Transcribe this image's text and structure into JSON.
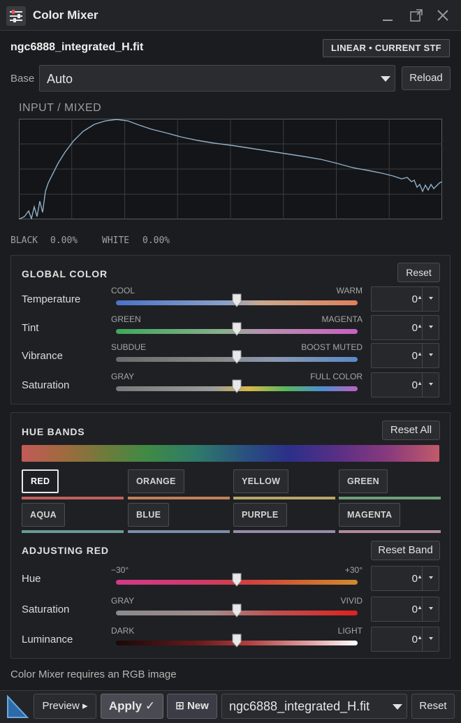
{
  "window": {
    "title": "Color Mixer",
    "app_icon": "sliders-icon",
    "controls": [
      "minimize-icon",
      "popout-icon",
      "close-icon"
    ]
  },
  "file": {
    "name": "ngc6888_integrated_H.fit",
    "mode_badge": "LINEAR  •  CURRENT STF"
  },
  "base": {
    "label": "Base",
    "selected": "Auto",
    "reload_label": "Reload"
  },
  "histogram": {
    "label": "INPUT  /  MIXED",
    "black_label": "BLACK",
    "black_value": "0.00%",
    "white_label": "WHITE",
    "white_value": "0.00%",
    "curve_color": "#8fb0c8"
  },
  "global": {
    "title": "GLOBAL COLOR",
    "reset_label": "Reset",
    "rows": [
      {
        "label": "Temperature",
        "left": "COOL",
        "right": "WARM",
        "value": "0",
        "level": 0.5
      },
      {
        "label": "Tint",
        "left": "GREEN",
        "right": "MAGENTA",
        "value": "0",
        "level": 0.5
      },
      {
        "label": "Vibrance",
        "left": "SUBDUE",
        "right": "BOOST MUTED",
        "value": "0",
        "level": 0.5
      },
      {
        "label": "Saturation",
        "left": "GRAY",
        "right": "FULL COLOR",
        "value": "0",
        "level": 0.5
      }
    ]
  },
  "hue": {
    "title": "HUE BANDS",
    "reset_all_label": "Reset All",
    "bands": [
      {
        "label": "RED",
        "color": "#c0605e",
        "active": true
      },
      {
        "label": "ORANGE",
        "color": "#c0805a"
      },
      {
        "label": "YELLOW",
        "color": "#b8a868"
      },
      {
        "label": "GREEN",
        "color": "#6f9f7a"
      },
      {
        "label": "AQUA",
        "color": "#6a9a98"
      },
      {
        "label": "BLUE",
        "color": "#7a8fa8"
      },
      {
        "label": "PURPLE",
        "color": "#9a8aa8"
      },
      {
        "label": "MAGENTA",
        "color": "#b08aa0"
      }
    ],
    "adjusting_title": "ADJUSTING RED",
    "reset_band_label": "Reset Band",
    "rows": [
      {
        "label": "Hue",
        "left": "−30°",
        "right": "+30°",
        "value": "0",
        "level": 0.5
      },
      {
        "label": "Saturation",
        "left": "GRAY",
        "right": "VIVID",
        "value": "0",
        "level": 0.5
      },
      {
        "label": "Luminance",
        "left": "DARK",
        "right": "LIGHT",
        "value": "0",
        "level": 0.5
      }
    ]
  },
  "status": "Color Mixer requires an RGB image",
  "footer": {
    "logo": "triangle-logo-icon",
    "preview_label": "Preview ▸",
    "apply_label": "Apply ✓",
    "new_label": "⊞ New",
    "target_selected": "ngc6888_integrated_H.fit",
    "reset_label": "Reset"
  }
}
